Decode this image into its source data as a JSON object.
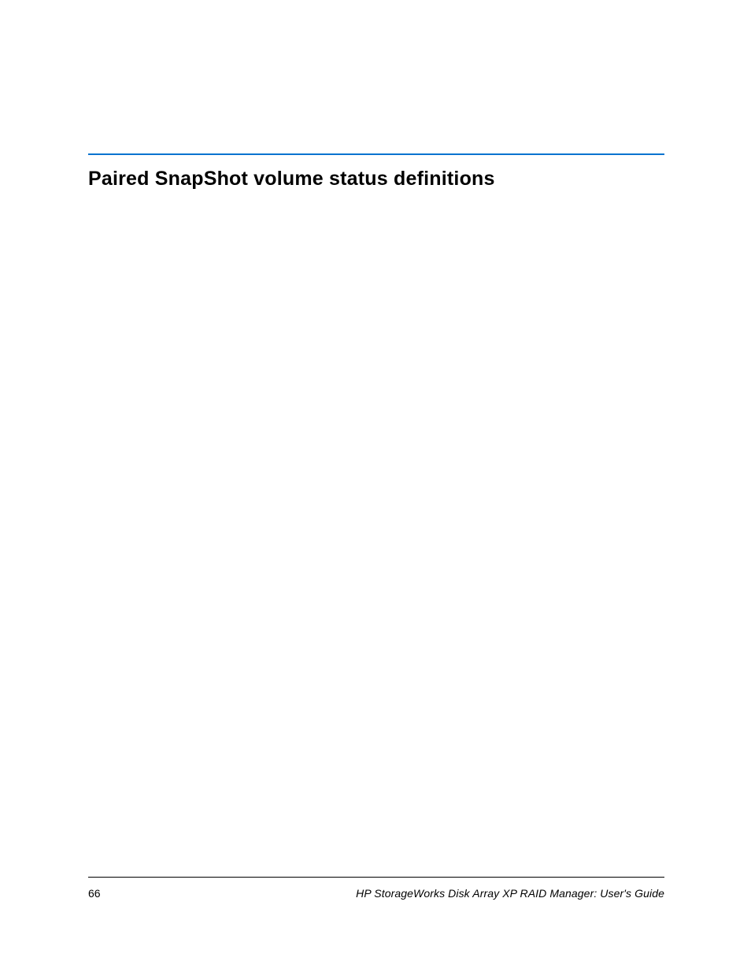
{
  "colors": {
    "rule_top": "#0073cf",
    "rule_bottom": "#000000",
    "text": "#000000",
    "background": "#ffffff"
  },
  "heading": "Paired SnapShot volume status definitions",
  "footer": {
    "page_number": "66",
    "title": "HP StorageWorks Disk Array XP RAID Manager: User's Guide"
  }
}
